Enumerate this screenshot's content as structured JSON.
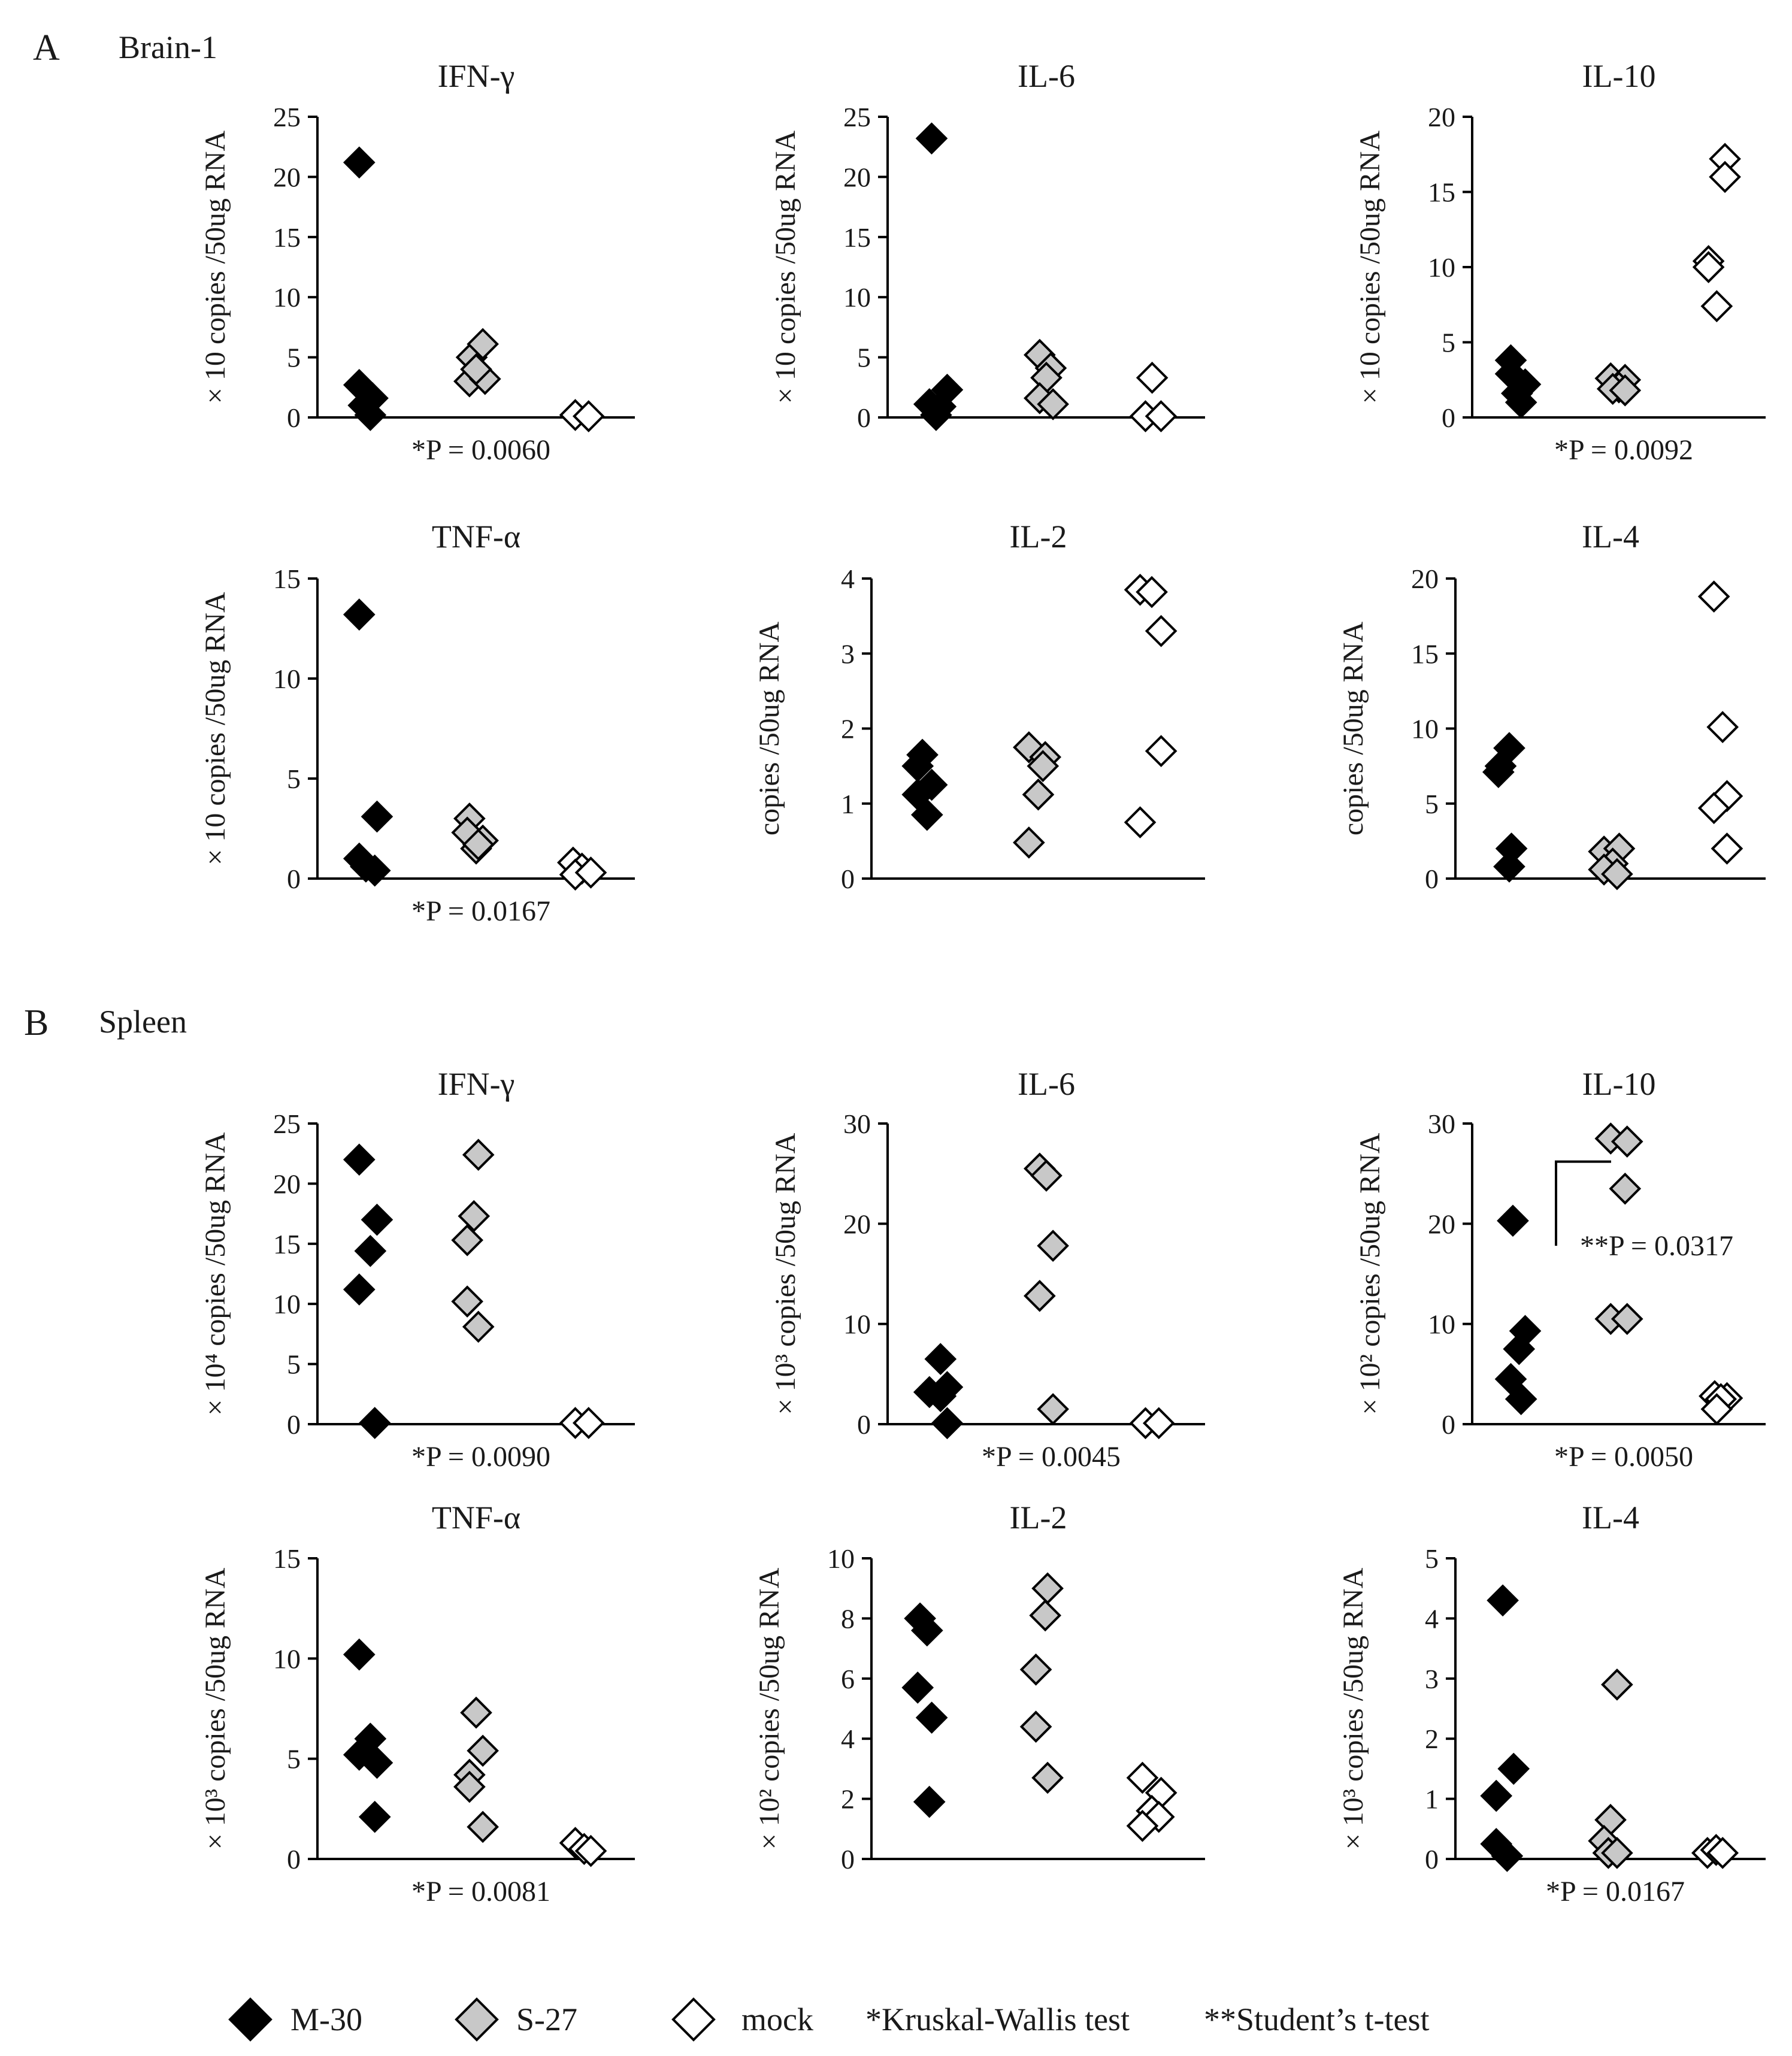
{
  "figure": {
    "panels": [
      {
        "letter": "A",
        "label": "Brain-1"
      },
      {
        "letter": "B",
        "label": "Spleen"
      }
    ],
    "legend": {
      "series": [
        {
          "name": "M-30",
          "color": "#000000"
        },
        {
          "name": "S-27",
          "color": "#c8c8c8"
        },
        {
          "name": "mock",
          "color": "#ffffff"
        }
      ],
      "notes": [
        "*Kruskal-Wallis test",
        "**Student’s t-test"
      ]
    }
  },
  "chart_data": [
    {
      "type": "scatter",
      "panel": "A",
      "title": "IFN-γ",
      "ylabel": "× 10 copies /50ug RNA",
      "ylim": [
        0,
        25
      ],
      "yticks": [
        "0",
        "5",
        "10",
        "15",
        "20",
        "25"
      ],
      "pvalue": "*P = 0.0060",
      "series": [
        {
          "name": "M-30",
          "points": [
            [
              -0.25,
              21.2
            ],
            [
              -0.25,
              2.7
            ],
            [
              0.05,
              1.6
            ],
            [
              -0.15,
              1.0
            ],
            [
              0.0,
              0.2
            ]
          ]
        },
        {
          "name": "S-27",
          "points": [
            [
              -0.1,
              5.0
            ],
            [
              0.15,
              6.1
            ],
            [
              -0.15,
              3.0
            ],
            [
              0.2,
              3.2
            ],
            [
              0.0,
              4.0
            ]
          ]
        },
        {
          "name": "mock",
          "points": [
            [
              -0.15,
              0.2
            ],
            [
              0.15,
              0.1
            ]
          ]
        }
      ]
    },
    {
      "type": "scatter",
      "panel": "A",
      "title": "IL-6",
      "ylabel": "× 10 copies /50ug RNA",
      "ylim": [
        0,
        25
      ],
      "yticks": [
        "0",
        "5",
        "10",
        "15",
        "20",
        "25"
      ],
      "pvalue": "",
      "series": [
        {
          "name": "M-30",
          "points": [
            [
              -0.2,
              23.2
            ],
            [
              -0.25,
              1.1
            ],
            [
              0.15,
              2.3
            ],
            [
              0.0,
              0.9
            ],
            [
              -0.1,
              0.2
            ]
          ]
        },
        {
          "name": "S-27",
          "points": [
            [
              -0.15,
              5.2
            ],
            [
              0.1,
              4.1
            ],
            [
              0.0,
              3.3
            ],
            [
              -0.15,
              1.6
            ],
            [
              0.15,
              1.1
            ]
          ]
        },
        {
          "name": "mock",
          "points": [
            [
              0.0,
              3.3
            ],
            [
              -0.15,
              0.1
            ],
            [
              0.2,
              0.1
            ]
          ]
        }
      ]
    },
    {
      "type": "scatter",
      "panel": "A",
      "title": "IL-10",
      "ylabel": "× 10 copies /50ug RNA",
      "ylim": [
        0,
        20
      ],
      "yticks": [
        "0",
        "5",
        "10",
        "15",
        "20"
      ],
      "pvalue": "*P = 0.0092",
      "series": [
        {
          "name": "M-30",
          "points": [
            [
              -0.25,
              3.8
            ],
            [
              -0.25,
              2.9
            ],
            [
              0.1,
              2.2
            ],
            [
              -0.1,
              1.6
            ],
            [
              0.0,
              1.0
            ]
          ]
        },
        {
          "name": "S-27",
          "points": [
            [
              -0.2,
              2.6
            ],
            [
              0.15,
              2.5
            ],
            [
              0.0,
              2.0
            ],
            [
              -0.15,
              1.9
            ],
            [
              0.15,
              1.8
            ]
          ]
        },
        {
          "name": "mock",
          "points": [
            [
              0.2,
              17.2
            ],
            [
              0.2,
              16.0
            ],
            [
              -0.2,
              10.4
            ],
            [
              -0.2,
              10.0
            ],
            [
              0.0,
              7.4
            ]
          ]
        }
      ]
    },
    {
      "type": "scatter",
      "panel": "A",
      "title": "TNF-α",
      "ylabel": "× 10 copies /50ug RNA",
      "ylim": [
        0,
        15
      ],
      "yticks": [
        "0",
        "5",
        "10",
        "15"
      ],
      "pvalue": "*P = 0.0167",
      "series": [
        {
          "name": "M-30",
          "points": [
            [
              -0.25,
              13.2
            ],
            [
              0.15,
              3.1
            ],
            [
              -0.25,
              1.0
            ],
            [
              -0.1,
              0.6
            ],
            [
              0.1,
              0.4
            ]
          ]
        },
        {
          "name": "S-27",
          "points": [
            [
              -0.15,
              3.0
            ],
            [
              -0.2,
              2.3
            ],
            [
              0.15,
              1.9
            ],
            [
              0.0,
              1.5
            ],
            [
              0.05,
              1.7
            ]
          ]
        },
        {
          "name": "mock",
          "points": [
            [
              -0.2,
              0.8
            ],
            [
              0.0,
              0.5
            ],
            [
              -0.15,
              0.2
            ],
            [
              0.2,
              0.3
            ]
          ]
        }
      ]
    },
    {
      "type": "scatter",
      "panel": "A",
      "title": "IL-2",
      "ylabel": "copies /50ug RNA",
      "ylim": [
        0,
        4
      ],
      "yticks": [
        "0",
        "1",
        "2",
        "3",
        "4"
      ],
      "pvalue": "",
      "series": [
        {
          "name": "M-30",
          "points": [
            [
              -0.1,
              1.65
            ],
            [
              -0.2,
              1.5
            ],
            [
              0.1,
              1.25
            ],
            [
              -0.2,
              1.12
            ],
            [
              0.0,
              0.85
            ]
          ]
        },
        {
          "name": "S-27",
          "points": [
            [
              -0.2,
              1.75
            ],
            [
              0.15,
              1.62
            ],
            [
              0.1,
              1.5
            ],
            [
              0.0,
              1.12
            ],
            [
              -0.2,
              0.48
            ]
          ]
        },
        {
          "name": "mock",
          "points": [
            [
              -0.2,
              3.85
            ],
            [
              0.05,
              3.82
            ],
            [
              0.25,
              3.3
            ],
            [
              0.25,
              1.7
            ],
            [
              -0.2,
              0.75
            ]
          ]
        }
      ]
    },
    {
      "type": "scatter",
      "panel": "A",
      "title": "IL-4",
      "ylabel": "copies /50ug RNA",
      "ylim": [
        0,
        20
      ],
      "yticks": [
        "0",
        "5",
        "10",
        "15",
        "20"
      ],
      "pvalue": "",
      "series": [
        {
          "name": "M-30",
          "points": [
            [
              0.05,
              8.7
            ],
            [
              -0.15,
              7.5
            ],
            [
              -0.2,
              7.1
            ],
            [
              0.1,
              2.0
            ],
            [
              0.05,
              0.8
            ]
          ]
        },
        {
          "name": "S-27",
          "points": [
            [
              -0.15,
              1.8
            ],
            [
              0.2,
              2.0
            ],
            [
              0.05,
              1.0
            ],
            [
              -0.15,
              0.6
            ],
            [
              0.15,
              0.3
            ]
          ]
        },
        {
          "name": "mock",
          "points": [
            [
              0.0,
              18.8
            ],
            [
              0.2,
              10.1
            ],
            [
              0.3,
              5.5
            ],
            [
              0.0,
              4.7
            ],
            [
              0.3,
              2.0
            ]
          ]
        }
      ]
    },
    {
      "type": "scatter",
      "panel": "B",
      "title": "IFN-γ",
      "ylabel": "× 10⁴ copies /50ug RNA",
      "ylim": [
        0,
        25
      ],
      "yticks": [
        "0",
        "5",
        "10",
        "15",
        "20",
        "25"
      ],
      "pvalue": "*P = 0.0090",
      "series": [
        {
          "name": "M-30",
          "points": [
            [
              -0.25,
              22.0
            ],
            [
              0.15,
              17.0
            ],
            [
              0.0,
              14.4
            ],
            [
              -0.25,
              11.2
            ],
            [
              0.1,
              0.1
            ]
          ]
        },
        {
          "name": "S-27",
          "points": [
            [
              0.05,
              22.4
            ],
            [
              -0.05,
              17.3
            ],
            [
              -0.2,
              15.3
            ],
            [
              -0.2,
              10.2
            ],
            [
              0.05,
              8.1
            ]
          ]
        },
        {
          "name": "mock",
          "points": [
            [
              -0.15,
              0.1
            ],
            [
              0.15,
              0.1
            ]
          ]
        }
      ]
    },
    {
      "type": "scatter",
      "panel": "B",
      "title": "IL-6",
      "ylabel": "× 10³ copies /50ug RNA",
      "ylim": [
        0,
        30
      ],
      "yticks": [
        "0",
        "10",
        "20",
        "30"
      ],
      "pvalue": "*P = 0.0045",
      "series": [
        {
          "name": "M-30",
          "points": [
            [
              0.0,
              6.5
            ],
            [
              0.15,
              3.7
            ],
            [
              -0.25,
              3.2
            ],
            [
              0.0,
              2.8
            ],
            [
              0.15,
              0.1
            ]
          ]
        },
        {
          "name": "S-27",
          "points": [
            [
              -0.15,
              25.5
            ],
            [
              0.0,
              24.8
            ],
            [
              0.15,
              17.8
            ],
            [
              -0.15,
              12.8
            ],
            [
              0.15,
              1.5
            ]
          ]
        },
        {
          "name": "mock",
          "points": [
            [
              -0.15,
              0.1
            ],
            [
              0.15,
              0.1
            ]
          ]
        }
      ]
    },
    {
      "type": "scatter",
      "panel": "B",
      "title": "IL-10",
      "ylabel": "× 10² copies /50ug RNA",
      "ylim": [
        0,
        30
      ],
      "yticks": [
        "0",
        "10",
        "20",
        "30"
      ],
      "pvalue": "*P = 0.0050",
      "annotation": "**P = 0.0317",
      "series": [
        {
          "name": "M-30",
          "points": [
            [
              -0.2,
              20.3
            ],
            [
              0.1,
              9.3
            ],
            [
              -0.05,
              7.5
            ],
            [
              -0.25,
              4.5
            ],
            [
              0.0,
              2.5
            ]
          ]
        },
        {
          "name": "S-27",
          "points": [
            [
              -0.2,
              28.5
            ],
            [
              0.2,
              28.2
            ],
            [
              0.15,
              23.5
            ],
            [
              -0.2,
              10.5
            ],
            [
              0.2,
              10.5
            ]
          ]
        },
        {
          "name": "mock",
          "points": [
            [
              -0.05,
              2.8
            ],
            [
              0.25,
              2.6
            ],
            [
              0.1,
              2.5
            ],
            [
              0.0,
              1.5
            ]
          ]
        }
      ]
    },
    {
      "type": "scatter",
      "panel": "B",
      "title": "TNF-α",
      "ylabel": "× 10³ copies /50ug RNA",
      "ylim": [
        0,
        15
      ],
      "yticks": [
        "0",
        "5",
        "10",
        "15"
      ],
      "pvalue": "*P = 0.0081",
      "series": [
        {
          "name": "M-30",
          "points": [
            [
              -0.25,
              10.2
            ],
            [
              0.0,
              6.0
            ],
            [
              -0.25,
              5.2
            ],
            [
              0.15,
              4.8
            ],
            [
              0.1,
              2.1
            ]
          ]
        },
        {
          "name": "S-27",
          "points": [
            [
              0.0,
              7.3
            ],
            [
              0.15,
              5.4
            ],
            [
              -0.15,
              4.2
            ],
            [
              -0.15,
              3.6
            ],
            [
              0.15,
              1.6
            ]
          ]
        },
        {
          "name": "mock",
          "points": [
            [
              -0.15,
              0.8
            ],
            [
              0.05,
              0.5
            ],
            [
              0.2,
              0.4
            ]
          ]
        }
      ]
    },
    {
      "type": "scatter",
      "panel": "B",
      "title": "IL-2",
      "ylabel": "× 10² copies /50ug RNA",
      "ylim": [
        0,
        10
      ],
      "yticks": [
        "0",
        "2",
        "4",
        "6",
        "8",
        "10"
      ],
      "pvalue": "",
      "series": [
        {
          "name": "M-30",
          "points": [
            [
              -0.15,
              8.0
            ],
            [
              0.0,
              7.6
            ],
            [
              -0.2,
              5.7
            ],
            [
              0.1,
              4.7
            ],
            [
              0.05,
              1.9
            ]
          ]
        },
        {
          "name": "S-27",
          "points": [
            [
              0.2,
              9.0
            ],
            [
              0.15,
              8.1
            ],
            [
              -0.05,
              6.3
            ],
            [
              -0.05,
              4.4
            ],
            [
              0.2,
              2.7
            ]
          ]
        },
        {
          "name": "mock",
          "points": [
            [
              -0.15,
              2.7
            ],
            [
              0.25,
              2.2
            ],
            [
              0.05,
              1.6
            ],
            [
              0.2,
              1.4
            ],
            [
              -0.15,
              1.1
            ]
          ]
        }
      ]
    },
    {
      "type": "scatter",
      "panel": "B",
      "title": "IL-4",
      "ylabel": "× 10³ copies /50ug RNA",
      "ylim": [
        0,
        5
      ],
      "yticks": [
        "0",
        "1",
        "2",
        "3",
        "4",
        "5"
      ],
      "pvalue": "*P = 0.0167",
      "series": [
        {
          "name": "M-30",
          "points": [
            [
              -0.1,
              4.3
            ],
            [
              0.15,
              1.5
            ],
            [
              -0.25,
              1.05
            ],
            [
              -0.25,
              0.25
            ],
            [
              0.0,
              0.05
            ]
          ]
        },
        {
          "name": "S-27",
          "points": [
            [
              0.15,
              2.9
            ],
            [
              0.0,
              0.65
            ],
            [
              -0.15,
              0.3
            ],
            [
              -0.05,
              0.1
            ],
            [
              0.15,
              0.1
            ]
          ]
        },
        {
          "name": "mock",
          "points": [
            [
              -0.15,
              0.1
            ],
            [
              0.05,
              0.15
            ],
            [
              0.2,
              0.1
            ]
          ]
        }
      ]
    }
  ]
}
